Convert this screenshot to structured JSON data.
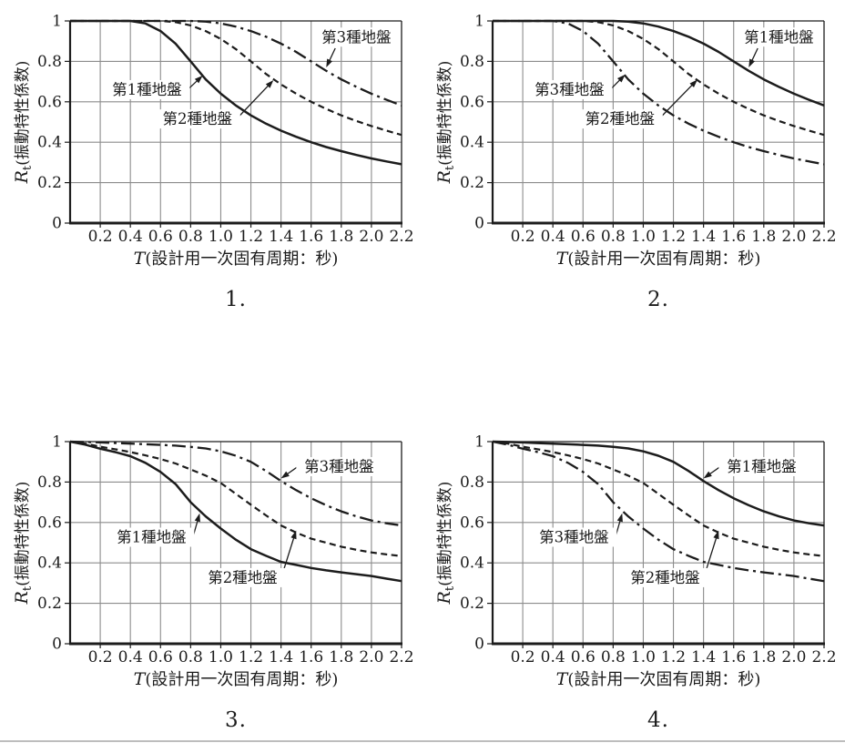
{
  "colors": {
    "line": "#1c1c1c",
    "grid": "#8c8c8c",
    "background": "#ffffff"
  },
  "axis_labels": {
    "x_main": "T",
    "x_paren": "(設計用一次固有周期：秒)",
    "y_main": "R",
    "y_sub": "t",
    "y_paren": "(振動特性係数)"
  },
  "chart_data": [
    {
      "type": "line",
      "panel_label": "1.",
      "xlabel": "T(設計用一次固有周期：秒)",
      "ylabel": "Rt(振動特性係数)",
      "xlim": [
        0,
        2.2
      ],
      "ylim": [
        0,
        1
      ],
      "grid": true,
      "legend": "inline-annotations",
      "x_ticks": [
        "0.2",
        "0.4",
        "0.6",
        "0.8",
        "1.0",
        "1.2",
        "1.4",
        "1.6",
        "1.8",
        "2.0",
        "2.2"
      ],
      "y_ticks": [
        "1",
        "0.8",
        "0.6",
        "0.4",
        "0.2",
        "0"
      ],
      "x": [
        0,
        0.1,
        0.2,
        0.3,
        0.4,
        0.5,
        0.6,
        0.7,
        0.8,
        0.9,
        1.0,
        1.1,
        1.2,
        1.3,
        1.4,
        1.5,
        1.6,
        1.7,
        1.8,
        1.9,
        2.0,
        2.1,
        2.2
      ],
      "series": [
        {
          "key": "ground-type-1",
          "name": "第1種地盤",
          "dash": "solid",
          "values": [
            1,
            1,
            1,
            1,
            1,
            0.988,
            0.95,
            0.888,
            0.8,
            0.711,
            0.64,
            0.582,
            0.533,
            0.492,
            0.457,
            0.427,
            0.4,
            0.376,
            0.356,
            0.337,
            0.32,
            0.305,
            0.291
          ],
          "annotation": {
            "label_at": [
              0.51,
              0.66
            ],
            "arrow_from": [
              0.79,
              0.667
            ],
            "arrow_to": [
              0.88,
              0.73
            ]
          }
        },
        {
          "key": "ground-type-2",
          "name": "第2種地盤",
          "dash": "dashed",
          "values": [
            1,
            1,
            1,
            1,
            1,
            1,
            1,
            0.994,
            0.978,
            0.95,
            0.911,
            0.861,
            0.8,
            0.738,
            0.686,
            0.64,
            0.6,
            0.565,
            0.533,
            0.505,
            0.48,
            0.457,
            0.436
          ],
          "annotation": {
            "label_at": [
              0.845,
              0.515
            ],
            "arrow_from": [
              1.12,
              0.527
            ],
            "arrow_to": [
              1.35,
              0.707
            ]
          }
        },
        {
          "key": "ground-type-3",
          "name": "第3種地盤",
          "dash": "dashdot",
          "values": [
            1,
            1,
            1,
            1,
            1,
            1,
            1,
            1,
            1,
            0.997,
            0.988,
            0.972,
            0.95,
            0.922,
            0.888,
            0.847,
            0.8,
            0.753,
            0.711,
            0.674,
            0.64,
            0.61,
            0.582
          ],
          "annotation": {
            "label_at": [
              1.9,
              0.92
            ],
            "arrow_from": [
              1.76,
              0.865
            ],
            "arrow_to": [
              1.7,
              0.77
            ]
          }
        }
      ]
    },
    {
      "type": "line",
      "panel_label": "2.",
      "xlabel": "T(設計用一次固有周期：秒)",
      "ylabel": "Rt(振動特性係数)",
      "xlim": [
        0,
        2.2
      ],
      "ylim": [
        0,
        1
      ],
      "grid": true,
      "legend": "inline-annotations",
      "x_ticks": [
        "0.2",
        "0.4",
        "0.6",
        "0.8",
        "1.0",
        "1.2",
        "1.4",
        "1.6",
        "1.8",
        "2.0",
        "2.2"
      ],
      "y_ticks": [
        "1",
        "0.8",
        "0.6",
        "0.4",
        "0.2",
        "0"
      ],
      "x": [
        0,
        0.1,
        0.2,
        0.3,
        0.4,
        0.5,
        0.6,
        0.7,
        0.8,
        0.9,
        1.0,
        1.1,
        1.2,
        1.3,
        1.4,
        1.5,
        1.6,
        1.7,
        1.8,
        1.9,
        2.0,
        2.1,
        2.2
      ],
      "series": [
        {
          "key": "ground-type-1",
          "name": "第1種地盤",
          "dash": "solid",
          "values": [
            1,
            1,
            1,
            1,
            1,
            1,
            1,
            1,
            1,
            0.997,
            0.988,
            0.972,
            0.95,
            0.922,
            0.888,
            0.847,
            0.8,
            0.753,
            0.711,
            0.674,
            0.64,
            0.61,
            0.582
          ],
          "annotation": {
            "label_at": [
              1.9,
              0.92
            ],
            "arrow_from": [
              1.76,
              0.865
            ],
            "arrow_to": [
              1.7,
              0.77
            ]
          }
        },
        {
          "key": "ground-type-2",
          "name": "第2種地盤",
          "dash": "dashed",
          "values": [
            1,
            1,
            1,
            1,
            1,
            1,
            1,
            0.994,
            0.978,
            0.95,
            0.911,
            0.861,
            0.8,
            0.738,
            0.686,
            0.64,
            0.6,
            0.565,
            0.533,
            0.505,
            0.48,
            0.457,
            0.436
          ],
          "annotation": {
            "label_at": [
              0.845,
              0.515
            ],
            "arrow_from": [
              1.12,
              0.527
            ],
            "arrow_to": [
              1.36,
              0.71
            ]
          }
        },
        {
          "key": "ground-type-3",
          "name": "第3種地盤",
          "dash": "dashdot",
          "values": [
            1,
            1,
            1,
            1,
            1,
            0.988,
            0.95,
            0.888,
            0.8,
            0.711,
            0.64,
            0.582,
            0.533,
            0.492,
            0.457,
            0.427,
            0.4,
            0.376,
            0.356,
            0.337,
            0.32,
            0.305,
            0.291
          ],
          "annotation": {
            "label_at": [
              0.51,
              0.66
            ],
            "arrow_from": [
              0.79,
              0.667
            ],
            "arrow_to": [
              0.88,
              0.735
            ]
          }
        }
      ]
    },
    {
      "type": "line",
      "panel_label": "3.",
      "xlabel": "T(設計用一次固有周期：秒)",
      "ylabel": "Rt(振動特性係数)",
      "xlim": [
        0,
        2.2
      ],
      "ylim": [
        0,
        1
      ],
      "grid": true,
      "legend": "inline-annotations",
      "x_ticks": [
        "0.2",
        "0.4",
        "0.6",
        "0.8",
        "1.0",
        "1.2",
        "1.4",
        "1.6",
        "1.8",
        "2.0",
        "2.2"
      ],
      "y_ticks": [
        "1",
        "0.8",
        "0.6",
        "0.4",
        "0.2",
        "0"
      ],
      "x": [
        0,
        0.1,
        0.2,
        0.3,
        0.4,
        0.5,
        0.6,
        0.7,
        0.8,
        0.9,
        1.0,
        1.1,
        1.2,
        1.3,
        1.4,
        1.5,
        1.6,
        1.7,
        1.8,
        1.9,
        2.0,
        2.1,
        2.2
      ],
      "series": [
        {
          "key": "ground-type-1",
          "name": "第1種地盤",
          "dash": "solid",
          "values": [
            1,
            0.985,
            0.965,
            0.948,
            0.928,
            0.895,
            0.85,
            0.79,
            0.7,
            0.63,
            0.57,
            0.515,
            0.468,
            0.435,
            0.405,
            0.39,
            0.375,
            0.363,
            0.353,
            0.344,
            0.335,
            0.322,
            0.31
          ],
          "annotation": {
            "label_at": [
              0.54,
              0.527
            ],
            "arrow_from": [
              0.82,
              0.54
            ],
            "arrow_to": [
              0.86,
              0.645
            ]
          }
        },
        {
          "key": "ground-type-2",
          "name": "第2種地盤",
          "dash": "dashed",
          "values": [
            1,
            0.99,
            0.975,
            0.962,
            0.948,
            0.932,
            0.914,
            0.892,
            0.862,
            0.832,
            0.795,
            0.742,
            0.688,
            0.635,
            0.585,
            0.55,
            0.52,
            0.5,
            0.48,
            0.465,
            0.452,
            0.442,
            0.434
          ],
          "annotation": {
            "label_at": [
              1.145,
              0.327
            ],
            "arrow_from": [
              1.41,
              0.347
            ],
            "arrow_to": [
              1.5,
              0.56
            ]
          }
        },
        {
          "key": "ground-type-3",
          "name": "第3種地盤",
          "dash": "dashdot",
          "values": [
            1,
            0.998,
            0.996,
            0.993,
            0.99,
            0.987,
            0.984,
            0.98,
            0.974,
            0.966,
            0.952,
            0.93,
            0.9,
            0.855,
            0.805,
            0.76,
            0.72,
            0.685,
            0.655,
            0.63,
            0.61,
            0.596,
            0.585
          ],
          "annotation": {
            "label_at": [
              1.785,
              0.876
            ],
            "arrow_from": [
              1.515,
              0.878
            ],
            "arrow_to": [
              1.4,
              0.818
            ]
          }
        }
      ]
    },
    {
      "type": "line",
      "panel_label": "4.",
      "xlabel": "T(設計用一次固有周期：秒)",
      "ylabel": "Rt(振動特性係数)",
      "xlim": [
        0,
        2.2
      ],
      "ylim": [
        0,
        1
      ],
      "grid": true,
      "legend": "inline-annotations",
      "x_ticks": [
        "0.2",
        "0.4",
        "0.6",
        "0.8",
        "1.0",
        "1.2",
        "1.4",
        "1.6",
        "1.8",
        "2.0",
        "2.2"
      ],
      "y_ticks": [
        "1",
        "0.8",
        "0.6",
        "0.4",
        "0.2",
        "0"
      ],
      "x": [
        0,
        0.1,
        0.2,
        0.3,
        0.4,
        0.5,
        0.6,
        0.7,
        0.8,
        0.9,
        1.0,
        1.1,
        1.2,
        1.3,
        1.4,
        1.5,
        1.6,
        1.7,
        1.8,
        1.9,
        2.0,
        2.1,
        2.2
      ],
      "series": [
        {
          "key": "ground-type-1",
          "name": "第1種地盤",
          "dash": "solid",
          "values": [
            1,
            0.998,
            0.996,
            0.993,
            0.99,
            0.987,
            0.984,
            0.98,
            0.974,
            0.966,
            0.952,
            0.93,
            0.9,
            0.855,
            0.805,
            0.76,
            0.72,
            0.685,
            0.655,
            0.63,
            0.61,
            0.596,
            0.585
          ],
          "annotation": {
            "label_at": [
              1.785,
              0.876
            ],
            "arrow_from": [
              1.515,
              0.878
            ],
            "arrow_to": [
              1.4,
              0.818
            ]
          }
        },
        {
          "key": "ground-type-2",
          "name": "第2種地盤",
          "dash": "dashed",
          "values": [
            1,
            0.99,
            0.975,
            0.962,
            0.948,
            0.932,
            0.914,
            0.892,
            0.862,
            0.832,
            0.795,
            0.742,
            0.688,
            0.635,
            0.585,
            0.55,
            0.52,
            0.5,
            0.48,
            0.465,
            0.452,
            0.442,
            0.434
          ],
          "annotation": {
            "label_at": [
              1.145,
              0.327
            ],
            "arrow_from": [
              1.41,
              0.347
            ],
            "arrow_to": [
              1.5,
              0.56
            ]
          }
        },
        {
          "key": "ground-type-3",
          "name": "第3種地盤",
          "dash": "dashdot",
          "values": [
            1,
            0.985,
            0.965,
            0.948,
            0.928,
            0.895,
            0.85,
            0.79,
            0.7,
            0.63,
            0.57,
            0.515,
            0.468,
            0.435,
            0.405,
            0.39,
            0.375,
            0.363,
            0.353,
            0.344,
            0.335,
            0.322,
            0.31
          ],
          "annotation": {
            "label_at": [
              0.54,
              0.527
            ],
            "arrow_from": [
              0.82,
              0.54
            ],
            "arrow_to": [
              0.86,
              0.645
            ]
          }
        }
      ]
    }
  ]
}
